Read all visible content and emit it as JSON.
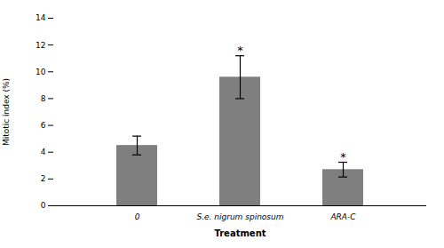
{
  "chart_data": {
    "type": "bar",
    "categories": [
      "0",
      "S.e. nigrum spinosum",
      "ARA-C"
    ],
    "values": [
      4.5,
      9.6,
      2.7
    ],
    "errors": [
      0.7,
      1.6,
      0.55
    ],
    "significance": [
      false,
      true,
      true
    ],
    "significance_label": "*",
    "color": "#7f7f7f",
    "xlabel": "Treatment",
    "ylabel": "Mitotic index (%)",
    "ylim": [
      0,
      14
    ],
    "yticks": [
      0,
      2,
      4,
      6,
      8,
      10,
      12,
      14
    ],
    "grid": false
  }
}
